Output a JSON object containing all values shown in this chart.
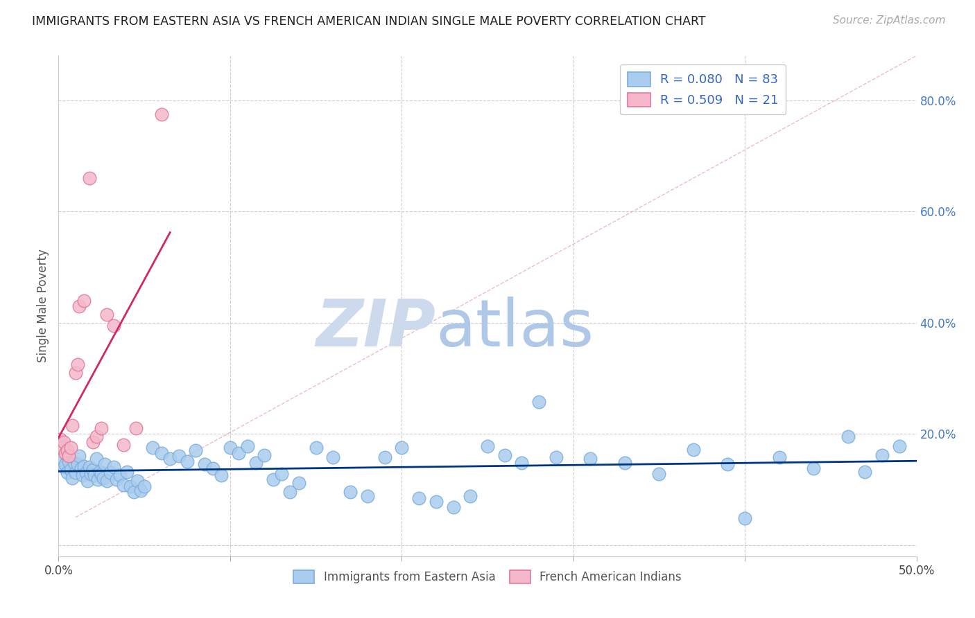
{
  "title": "IMMIGRANTS FROM EASTERN ASIA VS FRENCH AMERICAN INDIAN SINGLE MALE POVERTY CORRELATION CHART",
  "source": "Source: ZipAtlas.com",
  "ylabel": "Single Male Poverty",
  "xlim": [
    0.0,
    0.5
  ],
  "ylim": [
    -0.02,
    0.88
  ],
  "x_ticks": [
    0.0,
    0.1,
    0.2,
    0.3,
    0.4,
    0.5
  ],
  "x_tick_labels_show": [
    "0.0%",
    "",
    "",
    "",
    "",
    "50.0%"
  ],
  "y_ticks": [
    0.0,
    0.2,
    0.4,
    0.6,
    0.8
  ],
  "y_right_labels": [
    "",
    "20.0%",
    "40.0%",
    "60.0%",
    "80.0%"
  ],
  "R_blue": 0.08,
  "N_blue": 83,
  "R_pink": 0.509,
  "N_pink": 21,
  "blue_color": "#aaccee",
  "blue_edge": "#7aadda",
  "pink_color": "#f4b8ca",
  "pink_edge": "#e07898",
  "trend_blue": "#003580",
  "trend_pink": "#d02860",
  "grid_color": "#cccccc",
  "title_color": "#222222",
  "source_color": "#aaaaaa",
  "blue_scatter_x": [
    0.002,
    0.003,
    0.004,
    0.005,
    0.006,
    0.007,
    0.008,
    0.009,
    0.01,
    0.011,
    0.012,
    0.013,
    0.014,
    0.015,
    0.016,
    0.017,
    0.018,
    0.019,
    0.02,
    0.021,
    0.022,
    0.023,
    0.024,
    0.025,
    0.026,
    0.027,
    0.028,
    0.03,
    0.032,
    0.034,
    0.036,
    0.038,
    0.04,
    0.042,
    0.044,
    0.046,
    0.048,
    0.05,
    0.055,
    0.06,
    0.065,
    0.07,
    0.075,
    0.08,
    0.085,
    0.09,
    0.095,
    0.1,
    0.105,
    0.11,
    0.115,
    0.12,
    0.125,
    0.13,
    0.135,
    0.14,
    0.15,
    0.16,
    0.17,
    0.18,
    0.19,
    0.2,
    0.21,
    0.22,
    0.23,
    0.24,
    0.25,
    0.26,
    0.27,
    0.28,
    0.29,
    0.31,
    0.33,
    0.35,
    0.37,
    0.39,
    0.4,
    0.42,
    0.44,
    0.46,
    0.47,
    0.48,
    0.49
  ],
  "blue_scatter_y": [
    0.155,
    0.14,
    0.145,
    0.13,
    0.15,
    0.135,
    0.12,
    0.148,
    0.13,
    0.145,
    0.16,
    0.138,
    0.125,
    0.142,
    0.13,
    0.115,
    0.14,
    0.128,
    0.135,
    0.125,
    0.155,
    0.118,
    0.132,
    0.128,
    0.12,
    0.145,
    0.115,
    0.13,
    0.14,
    0.118,
    0.125,
    0.108,
    0.132,
    0.105,
    0.095,
    0.115,
    0.098,
    0.105,
    0.175,
    0.165,
    0.155,
    0.16,
    0.15,
    0.17,
    0.145,
    0.138,
    0.125,
    0.175,
    0.165,
    0.178,
    0.148,
    0.162,
    0.118,
    0.128,
    0.095,
    0.112,
    0.175,
    0.158,
    0.095,
    0.088,
    0.158,
    0.175,
    0.085,
    0.078,
    0.068,
    0.088,
    0.178,
    0.162,
    0.148,
    0.258,
    0.158,
    0.155,
    0.148,
    0.128,
    0.172,
    0.145,
    0.048,
    0.158,
    0.138,
    0.195,
    0.132,
    0.162,
    0.178
  ],
  "pink_scatter_x": [
    0.001,
    0.002,
    0.003,
    0.004,
    0.005,
    0.006,
    0.007,
    0.008,
    0.01,
    0.011,
    0.012,
    0.015,
    0.018,
    0.02,
    0.022,
    0.025,
    0.028,
    0.032,
    0.038,
    0.045,
    0.06
  ],
  "pink_scatter_y": [
    0.19,
    0.175,
    0.185,
    0.165,
    0.17,
    0.16,
    0.175,
    0.215,
    0.31,
    0.325,
    0.43,
    0.44,
    0.66,
    0.185,
    0.195,
    0.21,
    0.415,
    0.395,
    0.18,
    0.21,
    0.775
  ]
}
